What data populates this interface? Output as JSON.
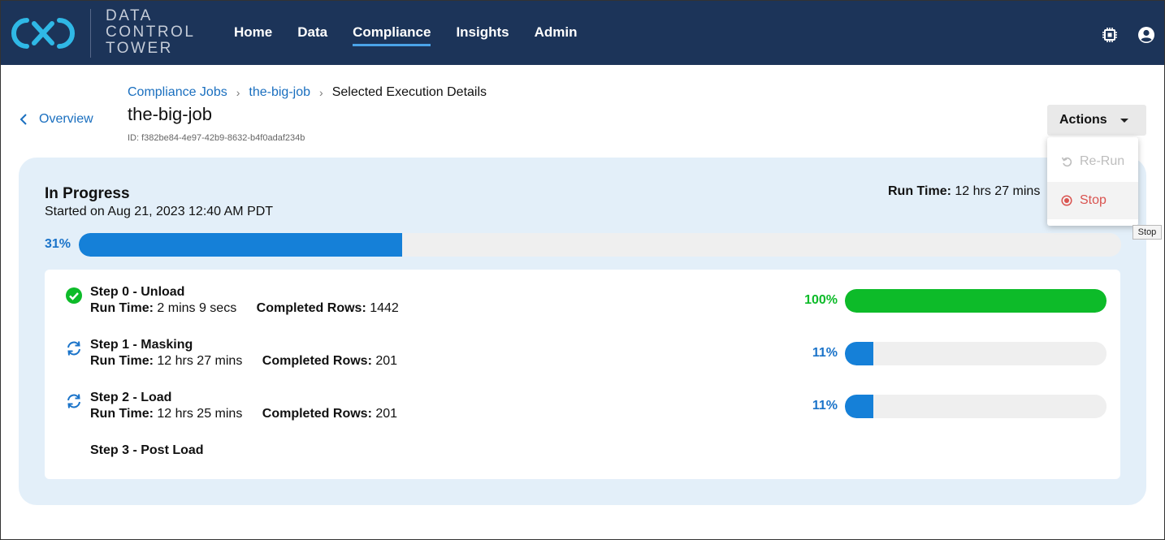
{
  "app": {
    "logo_lines": [
      "DATA",
      "CONTROL",
      "TOWER"
    ],
    "nav": [
      {
        "label": "Home",
        "active": false
      },
      {
        "label": "Data",
        "active": false
      },
      {
        "label": "Compliance",
        "active": true
      },
      {
        "label": "Insights",
        "active": false
      },
      {
        "label": "Admin",
        "active": false
      }
    ],
    "header_icons": [
      "chip-icon",
      "account-circle-icon"
    ]
  },
  "breadcrumb": {
    "back_label": "Overview",
    "items": [
      "Compliance Jobs",
      "the-big-job",
      "Selected Execution Details"
    ]
  },
  "job": {
    "title": "the-big-job",
    "id_text": "ID: f382be84-4e97-42b9-8632-b4f0adaf234b"
  },
  "actions": {
    "label": "Actions",
    "menu": [
      {
        "label": "Re-Run",
        "icon": "undo-icon",
        "disabled": true
      },
      {
        "label": "Stop",
        "icon": "stop-circle-icon",
        "disabled": false
      }
    ],
    "tooltip": "Stop"
  },
  "execution": {
    "status": "In Progress",
    "started": "Started on Aug 21, 2023 12:40 AM PDT",
    "runtime_label": "Run Time:",
    "runtime_value": "12 hrs 27 mins",
    "overall_percent_text": "31%",
    "overall_percent": 31
  },
  "steps": [
    {
      "name": "Step 0 - Unload",
      "status": "complete",
      "runtime_label": "Run Time:",
      "runtime": "2 mins 9 secs",
      "rows_label": "Completed Rows:",
      "rows": "1442",
      "percent_text": "100%",
      "percent": 100,
      "color": "#0dbb29"
    },
    {
      "name": "Step 1 - Masking",
      "status": "running",
      "runtime_label": "Run Time:",
      "runtime": "12 hrs 27 mins",
      "rows_label": "Completed Rows:",
      "rows": "201",
      "percent_text": "11%",
      "percent": 11,
      "color": "#1580d8"
    },
    {
      "name": "Step 2 - Load",
      "status": "running",
      "runtime_label": "Run Time:",
      "runtime": "12 hrs 25 mins",
      "rows_label": "Completed Rows:",
      "rows": "201",
      "percent_text": "11%",
      "percent": 11,
      "color": "#1580d8"
    },
    {
      "name": "Step 3 - Post Load",
      "status": "pending"
    }
  ],
  "colors": {
    "header_bg": "#1c3459",
    "link": "#1a6fbf",
    "progress_blue": "#1580d8",
    "success_green": "#0dbb29",
    "stop_red": "#d9534f"
  }
}
